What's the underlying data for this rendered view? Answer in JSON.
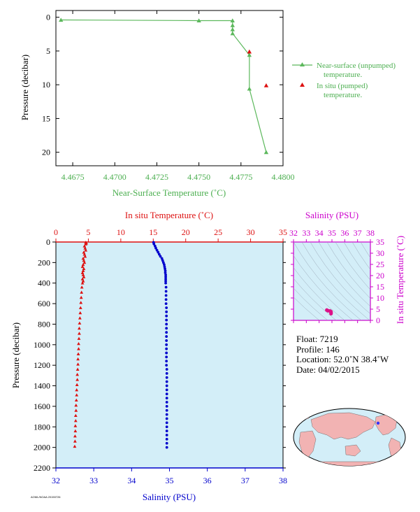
{
  "chart_data": [
    {
      "type": "line",
      "xlabel": "Near-Surface Temperature (˚C)",
      "ylabel": "Pressure (decibar)",
      "xlim": [
        4.4665,
        4.48
      ],
      "ylim": [
        22,
        -1
      ],
      "xticks": [
        4.4675,
        4.47,
        4.4725,
        4.475,
        4.4775,
        4.48
      ],
      "xtick_labels": [
        "4.4675",
        "4.4700",
        "4.4725",
        "4.4750",
        "4.4775",
        "4.4800"
      ],
      "yticks": [
        0,
        5,
        10,
        15,
        20
      ],
      "ytick_labels": [
        "0",
        "5",
        "10",
        "15",
        "20"
      ],
      "legend_position": "right",
      "series": [
        {
          "name": "Near-surface (unpumped) temperature.",
          "color": "#5cb85c",
          "marker": "triangle",
          "points": [
            [
              4.4668,
              0.4
            ],
            [
              4.475,
              0.5
            ],
            [
              4.477,
              0.5
            ],
            [
              4.477,
              1.2
            ],
            [
              4.477,
              1.8
            ],
            [
              4.477,
              2.4
            ],
            [
              4.478,
              5.6
            ],
            [
              4.478,
              10.6
            ],
            [
              4.479,
              20.0
            ]
          ]
        },
        {
          "name": "In situ (pumped) temperature.",
          "color": "#dd1111",
          "marker": "triangle",
          "points": [
            [
              4.478,
              5.1
            ],
            [
              4.479,
              10.1
            ]
          ]
        }
      ]
    },
    {
      "type": "scatter",
      "top_xlabel": "In situ Temperature (˚C)",
      "xlabel": "Salinity (PSU)",
      "ylabel": "Pressure (decibar)",
      "temperature_lim": [
        0,
        35
      ],
      "temperature_ticks": [
        "0",
        "5",
        "10",
        "15",
        "20",
        "25",
        "30",
        "35"
      ],
      "salinity_lim": [
        32,
        38
      ],
      "salinity_ticks": [
        "32",
        "33",
        "34",
        "35",
        "36",
        "37",
        "38"
      ],
      "ylim": [
        2200,
        0
      ],
      "yticks": [
        "0",
        "200",
        "400",
        "600",
        "800",
        "1000",
        "1200",
        "1400",
        "1600",
        "1800",
        "2000",
        "2200"
      ],
      "temperature_color": "#dd1111",
      "salinity_color": "#0000cc",
      "background_color": "#d3eef8",
      "temperature_profile": [
        [
          4.6,
          4
        ],
        [
          4.7,
          10
        ],
        [
          4.6,
          20
        ],
        [
          4.4,
          40
        ],
        [
          4.5,
          60
        ],
        [
          4.6,
          80
        ],
        [
          4.3,
          100
        ],
        [
          4.4,
          120
        ],
        [
          4.5,
          140
        ],
        [
          4.2,
          160
        ],
        [
          4.3,
          180
        ],
        [
          4.4,
          200
        ],
        [
          4.2,
          220
        ],
        [
          4.1,
          240
        ],
        [
          4.3,
          260
        ],
        [
          4.2,
          280
        ],
        [
          4.1,
          300
        ],
        [
          4.2,
          320
        ],
        [
          4.3,
          340
        ],
        [
          4.1,
          360
        ],
        [
          4.2,
          380
        ],
        [
          4.1,
          400
        ],
        [
          4.0,
          440
        ],
        [
          3.95,
          490
        ],
        [
          3.9,
          540
        ],
        [
          3.85,
          590
        ],
        [
          3.8,
          640
        ],
        [
          3.75,
          690
        ],
        [
          3.7,
          740
        ],
        [
          3.65,
          790
        ],
        [
          3.6,
          840
        ],
        [
          3.6,
          890
        ],
        [
          3.55,
          940
        ],
        [
          3.5,
          990
        ],
        [
          3.5,
          1040
        ],
        [
          3.45,
          1090
        ],
        [
          3.4,
          1140
        ],
        [
          3.4,
          1190
        ],
        [
          3.35,
          1240
        ],
        [
          3.3,
          1290
        ],
        [
          3.3,
          1340
        ],
        [
          3.25,
          1390
        ],
        [
          3.2,
          1440
        ],
        [
          3.2,
          1490
        ],
        [
          3.15,
          1540
        ],
        [
          3.1,
          1590
        ],
        [
          3.1,
          1640
        ],
        [
          3.05,
          1690
        ],
        [
          3.05,
          1740
        ],
        [
          3.0,
          1790
        ],
        [
          3.0,
          1840
        ],
        [
          2.95,
          1890
        ],
        [
          2.95,
          1940
        ],
        [
          2.9,
          1990
        ]
      ],
      "salinity_profile": [
        [
          34.58,
          4
        ],
        [
          34.59,
          20
        ],
        [
          34.62,
          40
        ],
        [
          34.64,
          60
        ],
        [
          34.67,
          80
        ],
        [
          34.7,
          100
        ],
        [
          34.73,
          120
        ],
        [
          34.76,
          140
        ],
        [
          34.8,
          160
        ],
        [
          34.82,
          180
        ],
        [
          34.84,
          200
        ],
        [
          34.86,
          220
        ],
        [
          34.87,
          240
        ],
        [
          34.88,
          260
        ],
        [
          34.89,
          280
        ],
        [
          34.89,
          300
        ],
        [
          34.9,
          320
        ],
        [
          34.9,
          340
        ],
        [
          34.9,
          360
        ],
        [
          34.9,
          380
        ],
        [
          34.9,
          400
        ],
        [
          34.91,
          440
        ],
        [
          34.91,
          480
        ],
        [
          34.91,
          520
        ],
        [
          34.91,
          560
        ],
        [
          34.91,
          600
        ],
        [
          34.92,
          640
        ],
        [
          34.92,
          680
        ],
        [
          34.92,
          720
        ],
        [
          34.92,
          760
        ],
        [
          34.92,
          800
        ],
        [
          34.92,
          840
        ],
        [
          34.92,
          880
        ],
        [
          34.92,
          920
        ],
        [
          34.92,
          960
        ],
        [
          34.92,
          1000
        ],
        [
          34.92,
          1040
        ],
        [
          34.92,
          1080
        ],
        [
          34.92,
          1120
        ],
        [
          34.92,
          1160
        ],
        [
          34.92,
          1200
        ],
        [
          34.93,
          1240
        ],
        [
          34.93,
          1280
        ],
        [
          34.93,
          1320
        ],
        [
          34.93,
          1360
        ],
        [
          34.93,
          1400
        ],
        [
          34.93,
          1440
        ],
        [
          34.93,
          1480
        ],
        [
          34.93,
          1520
        ],
        [
          34.93,
          1560
        ],
        [
          34.93,
          1600
        ],
        [
          34.93,
          1640
        ],
        [
          34.93,
          1680
        ],
        [
          34.93,
          1720
        ],
        [
          34.93,
          1760
        ],
        [
          34.93,
          1800
        ],
        [
          34.93,
          1840
        ],
        [
          34.93,
          1880
        ],
        [
          34.93,
          1920
        ],
        [
          34.93,
          1960
        ],
        [
          34.93,
          2000
        ]
      ]
    },
    {
      "type": "scatter",
      "xlabel": "Salinity (PSU)",
      "ylabel": "In situ Temperature (˚C)",
      "label_color": "#cc00cc",
      "xlim": [
        32,
        38
      ],
      "xticks": [
        "32",
        "33",
        "34",
        "35",
        "36",
        "37",
        "38"
      ],
      "ylim": [
        0,
        35
      ],
      "yticks": [
        "0",
        "5",
        "10",
        "15",
        "20",
        "25",
        "30",
        "35"
      ],
      "points": [
        [
          34.7,
          4.3
        ],
        [
          34.85,
          4.2
        ],
        [
          34.92,
          3.9
        ],
        [
          34.93,
          3.5
        ],
        [
          34.93,
          3.0
        ],
        [
          34.6,
          4.6
        ]
      ]
    }
  ],
  "float_info": {
    "float": "Float:  7219",
    "profile": "Profile:  146",
    "location": "Location:  52.0˚N  38.4˚W",
    "date": "Date:  04/02/2015"
  },
  "map": {
    "location_marker_color": "#3333ff",
    "land_color": "#f2b3b3",
    "ocean_color": "#d3eef8"
  },
  "footer": {
    "tiny_text": "AOML/NOAA 20150726"
  }
}
